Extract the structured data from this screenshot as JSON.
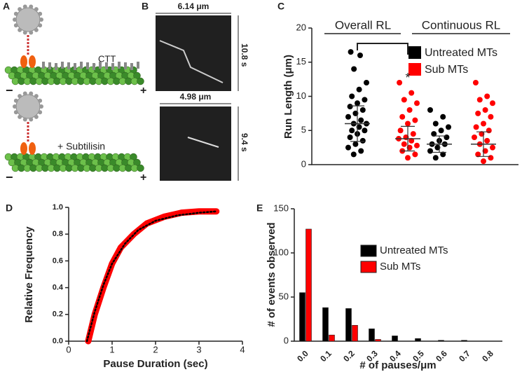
{
  "panels": {
    "labels": [
      "A",
      "B",
      "C",
      "D",
      "E"
    ],
    "diagram": {
      "ctt": "CTT",
      "treatment": "+ Subtilisin"
    },
    "kymographs": [
      {
        "width": "6.14 μm",
        "time": "10.8 s"
      },
      {
        "width": "4.98 μm",
        "time": "9.4 s"
      }
    ]
  },
  "chart_data": [
    {
      "type": "dotplot",
      "y_label": "Run Length (μm)",
      "categories": [
        "Overall RL",
        "Continuous RL"
      ],
      "annotation": "*",
      "ylim": [
        0,
        20
      ],
      "yticks": [
        0,
        5,
        10,
        15,
        20
      ],
      "legend": "upper right",
      "series": [
        {
          "name": "Untreated MTs",
          "color": "#000000",
          "points": [
            [
              16.5,
              16,
              14,
              12,
              11,
              10,
              9.5,
              9,
              8.5,
              8,
              7.5,
              7,
              6.5,
              6,
              6,
              5.5,
              5,
              5,
              4.5,
              4,
              3.5,
              3,
              2.5,
              2,
              1.5
            ],
            [
              8,
              7,
              6,
              5.5,
              5,
              4.5,
              4,
              3.5,
              3,
              3,
              2.5,
              2,
              1.5,
              1
            ]
          ],
          "mean": [
            6.0,
            3.0
          ],
          "sd": [
            2.6,
            1.2
          ]
        },
        {
          "name": "Sub MTs",
          "color": "#ff0000",
          "points": [
            [
              12,
              10.5,
              9.5,
              9,
              8,
              7,
              6.5,
              6,
              5,
              4.5,
              4,
              3.8,
              3.5,
              3,
              2.8,
              2.5,
              2,
              1.5,
              1
            ],
            [
              12,
              10,
              9.5,
              9,
              8,
              7.5,
              7,
              6,
              5.5,
              5,
              4.5,
              4,
              3.5,
              3,
              2.5,
              2,
              1.5,
              1,
              0.5
            ]
          ],
          "mean": [
            3.8,
            3.0
          ],
          "sd": [
            1.8,
            1.8
          ]
        }
      ]
    },
    {
      "type": "line",
      "x_label": "Pause Duration (sec)",
      "y_label": "Relative Frequency",
      "xlim": [
        0,
        4
      ],
      "xticks": [
        0,
        1,
        2,
        3,
        4
      ],
      "ylim": [
        0,
        1
      ],
      "yticks": [
        {
          "value": 0,
          "label": "0.0"
        },
        {
          "value": 0.2,
          "label": "0.2"
        },
        {
          "value": 0.4,
          "label": "0.4"
        },
        {
          "value": 0.6,
          "label": "0.6"
        },
        {
          "value": 0.8,
          "label": "0.8"
        },
        {
          "value": 1,
          "label": "1.0"
        }
      ],
      "series": [
        {
          "color": "#ff0000",
          "style": "solid",
          "x": [
            0.45,
            0.6,
            0.8,
            1.0,
            1.2,
            1.5,
            1.8,
            2.2,
            2.6,
            3.0,
            3.4
          ],
          "values": [
            0,
            0.2,
            0.4,
            0.58,
            0.7,
            0.8,
            0.88,
            0.93,
            0.96,
            0.97,
            0.97
          ]
        },
        {
          "color": "#000000",
          "style": "dotted",
          "x": [
            0.42,
            0.6,
            0.8,
            1.0,
            1.3,
            1.6,
            2.0,
            2.5,
            3.0,
            3.4
          ],
          "values": [
            0,
            0.22,
            0.42,
            0.58,
            0.73,
            0.83,
            0.9,
            0.94,
            0.96,
            0.97
          ]
        }
      ]
    },
    {
      "type": "bar",
      "x_label": "# of pauses/μm",
      "y_label": "# of events observed",
      "categories": [
        "0.0",
        "0.1",
        "0.2",
        "0.3",
        "0.4",
        "0.5",
        "0.6",
        "0.7",
        "0.8"
      ],
      "ylim": [
        0,
        150
      ],
      "yticks": [
        0,
        50,
        100,
        150
      ],
      "legend": "center right",
      "series": [
        {
          "name": "Untreated MTs",
          "color": "#000000",
          "values": [
            55,
            38,
            37,
            14,
            6,
            3,
            1,
            1,
            0
          ]
        },
        {
          "name": "Sub MTs",
          "color": "#ff0000",
          "values": [
            127,
            7,
            18,
            2,
            0,
            0,
            0,
            0,
            0
          ]
        }
      ]
    }
  ]
}
